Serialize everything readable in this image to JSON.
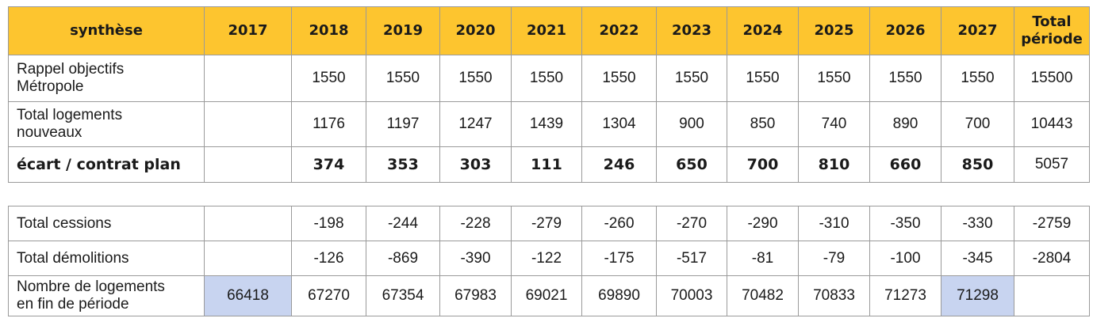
{
  "header": {
    "label": "synthèse",
    "years": [
      "2017",
      "2018",
      "2019",
      "2020",
      "2021",
      "2022",
      "2023",
      "2024",
      "2025",
      "2026",
      "2027"
    ],
    "total_line1": "Total",
    "total_line2": "période"
  },
  "table1": {
    "rows": [
      {
        "label_line1": "Rappel objectifs",
        "label_line2": "Métropole",
        "values": [
          "",
          "1550",
          "1550",
          "1550",
          "1550",
          "1550",
          "1550",
          "1550",
          "1550",
          "1550",
          "1550"
        ],
        "total": "15500"
      },
      {
        "label_line1": "Total logements",
        "label_line2": "nouveaux",
        "values": [
          "",
          "1176",
          "1197",
          "1247",
          "1439",
          "1304",
          "900",
          "850",
          "740",
          "890",
          "700"
        ],
        "total": "10443"
      },
      {
        "label_line1": "écart / contrat plan",
        "label_line2": "",
        "values": [
          "",
          "374",
          "353",
          "303",
          "111",
          "246",
          "650",
          "700",
          "810",
          "660",
          "850"
        ],
        "total": "5057"
      }
    ]
  },
  "table2": {
    "rows": [
      {
        "label_line1": "Total cessions",
        "label_line2": "",
        "values": [
          "",
          "-198",
          "-244",
          "-228",
          "-279",
          "-260",
          "-270",
          "-290",
          "-310",
          "-350",
          "-330"
        ],
        "total": "-2759"
      },
      {
        "label_line1": "Total démolitions",
        "label_line2": "",
        "values": [
          "",
          "-126",
          "-869",
          "-390",
          "-122",
          "-175",
          "-517",
          "-81",
          "-79",
          "-100",
          "-345"
        ],
        "total": "-2804"
      },
      {
        "label_line1": "Nombre de logements",
        "label_line2": "en fin de période",
        "values": [
          "66418",
          "67270",
          "67354",
          "67983",
          "69021",
          "69890",
          "70003",
          "70482",
          "70833",
          "71273",
          "71298"
        ],
        "total": ""
      }
    ]
  },
  "colors": {
    "header_bg": "#fdc52f",
    "highlight_bg": "#c8d4f0",
    "border": "#9a9a9a"
  }
}
